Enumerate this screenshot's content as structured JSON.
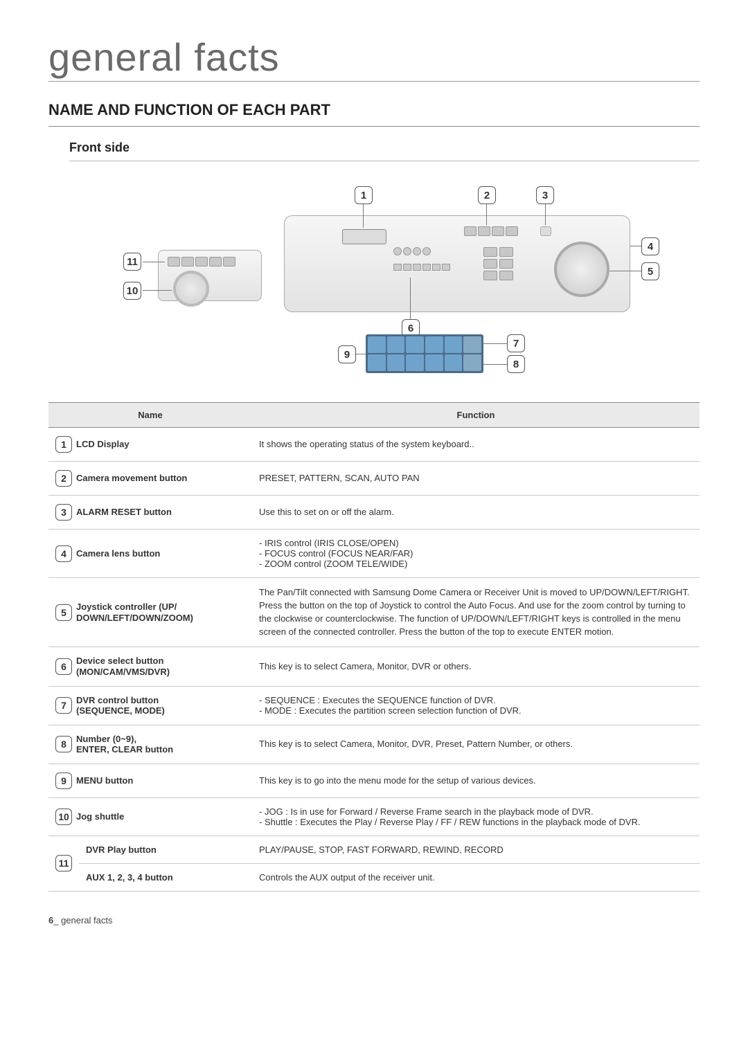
{
  "page": {
    "title": "general facts",
    "section_title": "NAME AND FUNCTION OF EACH PART",
    "subsection_title": "Front side",
    "footer_num": "6",
    "footer_sep": "_",
    "footer_text": " general facts"
  },
  "table": {
    "headers": {
      "name": "Name",
      "function": "Function"
    },
    "rows": [
      {
        "num": "1",
        "name": "LCD Display",
        "name2": "",
        "func_type": "text",
        "func": "It shows the operating status of the system keyboard.."
      },
      {
        "num": "2",
        "name": "Camera movement button",
        "name2": "",
        "func_type": "text",
        "func": "PRESET, PATTERN, SCAN, AUTO PAN"
      },
      {
        "num": "3",
        "name": "ALARM RESET button",
        "name2": "",
        "func_type": "text",
        "func": "Use this to set on or off the alarm."
      },
      {
        "num": "4",
        "name": "Camera lens button",
        "name2": "",
        "func_type": "list",
        "items": [
          "IRIS control (IRIS CLOSE/OPEN)",
          "FOCUS control (FOCUS NEAR/FAR)",
          "ZOOM control (ZOOM TELE/WIDE)"
        ]
      },
      {
        "num": "5",
        "name": "Joystick controller (UP/",
        "name2": "DOWN/LEFT/DOWN/ZOOM)",
        "func_type": "text",
        "func": "The Pan/Tilt connected with Samsung Dome Camera or Receiver Unit is moved to UP/DOWN/LEFT/RIGHT. Press the button on the top of Joystick to control the Auto Focus. And use for the zoom control by turning to the clockwise or counterclockwise. The function of UP/DOWN/LEFT/RIGHT keys is controlled in the menu screen of the connected controller. Press the button of the top to execute ENTER motion."
      },
      {
        "num": "6",
        "name": "Device select button",
        "name2": "(MON/CAM/VMS/DVR)",
        "func_type": "text",
        "func": "This key is to select Camera, Monitor, DVR or others."
      },
      {
        "num": "7",
        "name": "DVR control button",
        "name2": "(SEQUENCE, MODE)",
        "func_type": "list",
        "items": [
          "SEQUENCE : Executes the SEQUENCE function of DVR.",
          "MODE : Executes the partition screen selection function of DVR."
        ]
      },
      {
        "num": "8",
        "name": "Number (0~9),",
        "name2": "ENTER, CLEAR button",
        "func_type": "text",
        "func": "This key is to select Camera, Monitor, DVR, Preset, Pattern Number, or others."
      },
      {
        "num": "9",
        "name": "MENU button",
        "name2": "",
        "func_type": "text",
        "func": "This key is to go into the menu mode for the setup of various devices."
      },
      {
        "num": "10",
        "name": "Jog shuttle",
        "name2": "",
        "func_type": "list",
        "items": [
          "JOG : Is in use for Forward / Reverse Frame search in the playback mode of DVR.",
          "Shuttle : Executes the Play / Reverse Play / FF / REW functions in the playback mode of DVR."
        ]
      },
      {
        "num": "11",
        "split": true,
        "sub": [
          {
            "name": "DVR Play button",
            "func": "PLAY/PAUSE, STOP, FAST FORWARD, REWIND, RECORD"
          },
          {
            "name": "AUX 1, 2, 3, 4 button",
            "func": "Controls the AUX output of the receiver unit."
          }
        ]
      }
    ]
  },
  "diagram": {
    "callouts": {
      "c1": "1",
      "c2": "2",
      "c3": "3",
      "c4": "4",
      "c5": "5",
      "c6": "6",
      "c7": "7",
      "c8": "8",
      "c9": "9",
      "c10": "10",
      "c11": "11"
    },
    "colors": {
      "device_bg_top": "#f6f6f6",
      "device_bg_bottom": "#e3e3e3",
      "border": "#aaaaaa",
      "leader": "#777777",
      "numpad_bg": "#4a6b8a",
      "numpad_key": "#6fa3cc"
    }
  }
}
